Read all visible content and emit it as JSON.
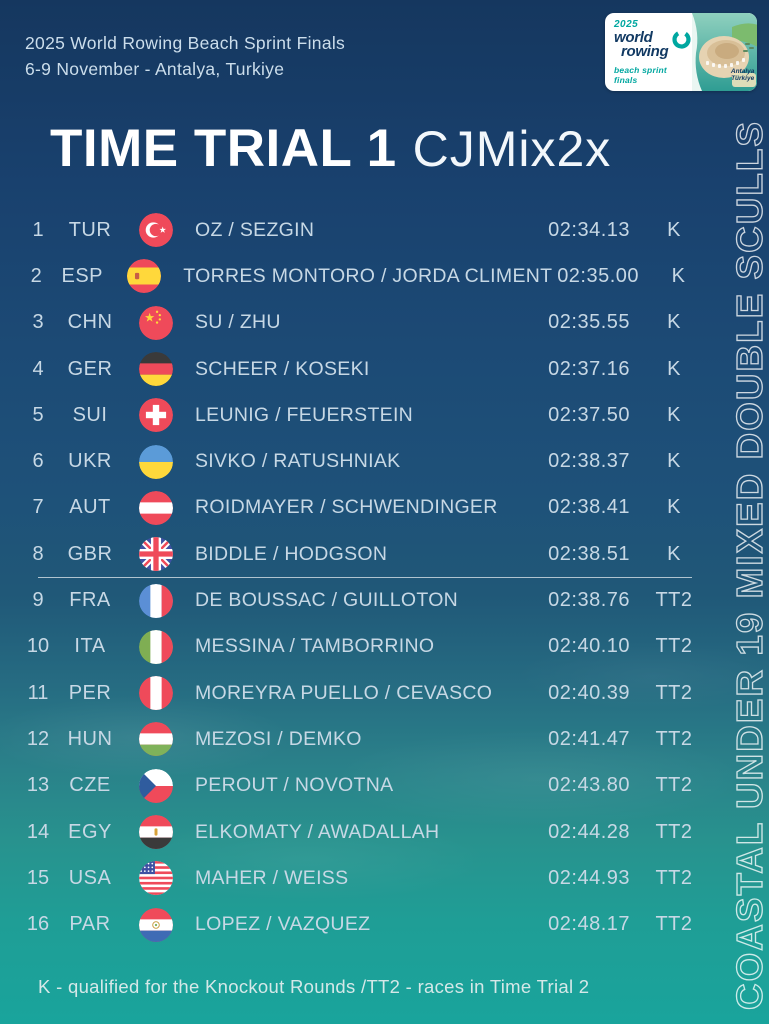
{
  "header": {
    "event_line1": "2025 World Rowing Beach Sprint Finals",
    "event_line2": "6-9 November  -  Antalya, Turkiye"
  },
  "logo": {
    "year": "2025",
    "brand_line1": "world",
    "brand_line2": "rowing",
    "subtitle": "beach sprint finals",
    "location_line1": "Antalya",
    "location_line2": "Türkiye"
  },
  "title": {
    "main": "TIME TRIAL 1",
    "event_code": "CJMix2x"
  },
  "side_label": "COASTAL UNDER 19 MIXED DOUBLE SCULLS",
  "results": {
    "qualified_cutoff_after_rank": 8,
    "rows": [
      {
        "rank": "1",
        "country": "TUR",
        "flag_icon": "flag-tur-icon",
        "crew": "OZ / SEZGIN",
        "time": "02:34.13",
        "qualifier": "K"
      },
      {
        "rank": "2",
        "country": "ESP",
        "flag_icon": "flag-esp-icon",
        "crew": "TORRES MONTORO / JORDA CLIMENT",
        "time": "02:35.00",
        "qualifier": "K"
      },
      {
        "rank": "3",
        "country": "CHN",
        "flag_icon": "flag-chn-icon",
        "crew": "SU / ZHU",
        "time": "02:35.55",
        "qualifier": "K"
      },
      {
        "rank": "4",
        "country": "GER",
        "flag_icon": "flag-ger-icon",
        "crew": "SCHEER / KOSEKI",
        "time": "02:37.16",
        "qualifier": "K"
      },
      {
        "rank": "5",
        "country": "SUI",
        "flag_icon": "flag-sui-icon",
        "crew": "LEUNIG / FEUERSTEIN",
        "time": "02:37.50",
        "qualifier": "K"
      },
      {
        "rank": "6",
        "country": "UKR",
        "flag_icon": "flag-ukr-icon",
        "crew": "SIVKO / RATUSHNIAK",
        "time": "02:38.37",
        "qualifier": "K"
      },
      {
        "rank": "7",
        "country": "AUT",
        "flag_icon": "flag-aut-icon",
        "crew": "ROIDMAYER / SCHWENDINGER",
        "time": "02:38.41",
        "qualifier": "K"
      },
      {
        "rank": "8",
        "country": "GBR",
        "flag_icon": "flag-gbr-icon",
        "crew": "BIDDLE / HODGSON",
        "time": "02:38.51",
        "qualifier": "K"
      },
      {
        "rank": "9",
        "country": "FRA",
        "flag_icon": "flag-fra-icon",
        "crew": "DE BOUSSAC / GUILLOTON",
        "time": "02:38.76",
        "qualifier": "TT2"
      },
      {
        "rank": "10",
        "country": "ITA",
        "flag_icon": "flag-ita-icon",
        "crew": "MESSINA / TAMBORRINO",
        "time": "02:40.10",
        "qualifier": "TT2"
      },
      {
        "rank": "11",
        "country": "PER",
        "flag_icon": "flag-per-icon",
        "crew": "MOREYRA PUELLO / CEVASCO",
        "time": "02:40.39",
        "qualifier": "TT2"
      },
      {
        "rank": "12",
        "country": "HUN",
        "flag_icon": "flag-hun-icon",
        "crew": "MEZOSI / DEMKO",
        "time": "02:41.47",
        "qualifier": "TT2"
      },
      {
        "rank": "13",
        "country": "CZE",
        "flag_icon": "flag-cze-icon",
        "crew": "PEROUT / NOVOTNA",
        "time": "02:43.80",
        "qualifier": "TT2"
      },
      {
        "rank": "14",
        "country": "EGY",
        "flag_icon": "flag-egy-icon",
        "crew": "ELKOMATY / AWADALLAH",
        "time": "02:44.28",
        "qualifier": "TT2"
      },
      {
        "rank": "15",
        "country": "USA",
        "flag_icon": "flag-usa-icon",
        "crew": "MAHER / WEISS",
        "time": "02:44.93",
        "qualifier": "TT2"
      },
      {
        "rank": "16",
        "country": "PAR",
        "flag_icon": "flag-par-icon",
        "crew": "LOPEZ / VAZQUEZ",
        "time": "02:48.17",
        "qualifier": "TT2"
      }
    ]
  },
  "footer": {
    "legend": "K - qualified for the Knockout Rounds /TT2 - races in Time Trial 2"
  },
  "colors": {
    "background_top": "#15375F",
    "background_bottom": "#19A49C",
    "table_text": "#C7D8E5",
    "title_text": "#FFFFFF",
    "logo_teal": "#00A7A0",
    "logo_navy": "#123A63"
  }
}
